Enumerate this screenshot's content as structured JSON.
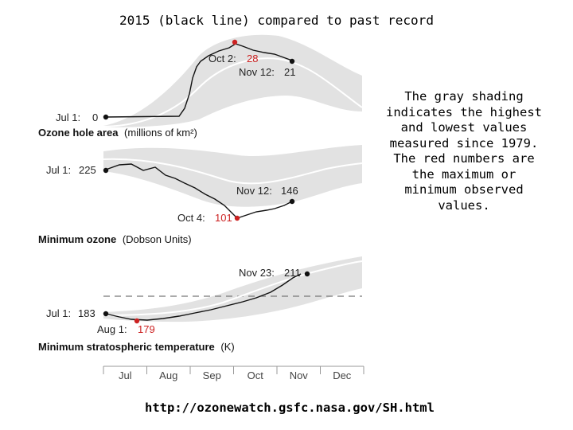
{
  "title": "2015 (black line) compared to past record",
  "note": "The gray shading indicates the highest and lowest values measured since 1979. The red numbers are the maximum or minimum observed values.",
  "url": "http://ozonewatch.gsfc.nasa.gov/SH.html",
  "colors": {
    "shading": "#e2e2e2",
    "line2015": "#111111",
    "average": "#ffffff",
    "record": "#cc2222"
  },
  "chart_data": [
    {
      "type": "line",
      "title": "Ozone hole area (millions of km²)",
      "title_main": "Ozone hole area",
      "title_unit": "(millions of km²)",
      "annotations": [
        {
          "label": "Jul 1:",
          "value": "0"
        },
        {
          "label": "Oct 2:",
          "value": "28",
          "record": true
        },
        {
          "label": "Nov 12:",
          "value": "21"
        }
      ],
      "series": [
        {
          "name": "2015",
          "x": [
            "Jul 1",
            "Jul 15",
            "Aug 1",
            "Aug 10",
            "Aug 20",
            "Aug 25",
            "Sep 1",
            "Sep 10",
            "Sep 20",
            "Oct 2",
            "Oct 15",
            "Oct 25",
            "Nov 5",
            "Nov 12"
          ],
          "values": [
            0,
            0,
            0.3,
            2,
            5,
            9,
            19,
            24,
            26,
            28,
            27,
            27,
            25,
            21
          ]
        }
      ],
      "ylim": [
        0,
        30
      ]
    },
    {
      "type": "line",
      "title": "Minimum ozone (Dobson Units)",
      "title_main": "Minimum ozone",
      "title_unit": "(Dobson Units)",
      "annotations": [
        {
          "label": "Jul 1:",
          "value": "225"
        },
        {
          "label": "Oct 4:",
          "value": "101",
          "record": true
        },
        {
          "label": "Nov 12:",
          "value": "146"
        }
      ],
      "series": [
        {
          "name": "2015",
          "x": [
            "Jul 1",
            "Jul 20",
            "Aug 1",
            "Aug 15",
            "Sep 1",
            "Sep 15",
            "Sep 25",
            "Oct 4",
            "Oct 20",
            "Nov 1",
            "Nov 12"
          ],
          "values": [
            225,
            228,
            220,
            212,
            185,
            150,
            125,
            101,
            115,
            130,
            146
          ]
        }
      ],
      "ylim": [
        90,
        240
      ]
    },
    {
      "type": "line",
      "title": "Minimum stratospheric temperature (K)",
      "title_main": "Minimum stratospheric temperature",
      "title_unit": "(K)",
      "annotations": [
        {
          "label": "Jul 1:",
          "value": "183"
        },
        {
          "label": "Aug 1:",
          "value": "179",
          "record": true
        },
        {
          "label": "Nov 23:",
          "value": "211"
        }
      ],
      "series": [
        {
          "name": "2015",
          "x": [
            "Jul 1",
            "Jul 15",
            "Aug 1",
            "Aug 20",
            "Sep 10",
            "Oct 1",
            "Oct 20",
            "Nov 5",
            "Nov 23"
          ],
          "values": [
            183,
            180,
            179,
            180,
            183,
            188,
            195,
            204,
            211
          ]
        }
      ],
      "ylim": [
        175,
        215
      ]
    }
  ],
  "x_axis": {
    "months": [
      "Jul",
      "Aug",
      "Sep",
      "Oct",
      "Nov",
      "Dec"
    ]
  }
}
